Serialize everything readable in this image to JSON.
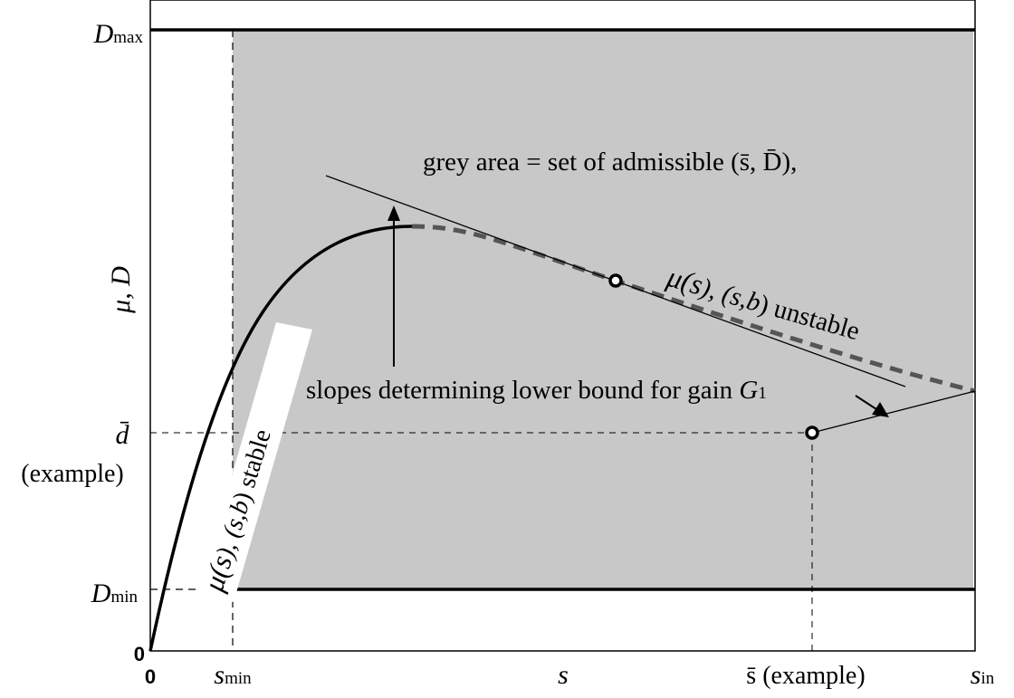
{
  "axes": {
    "y_label": "μ, D",
    "x_label": "s",
    "origin_x": "0",
    "origin_y": "0"
  },
  "y_ticks": {
    "d_max_base": "D",
    "d_max_sub": "max",
    "d_min_base": "D",
    "d_min_sub": "min",
    "d_bar": "d̄",
    "d_bar_note": "(example)"
  },
  "x_ticks": {
    "s_min_base": "s",
    "s_min_sub": "min",
    "s_bar": "s̄ (example)",
    "s_in_base": "s",
    "s_in_sub": "in"
  },
  "annotations": {
    "grey_area": "grey area = set of admissible (s̄, D̄),",
    "slopes": "slopes determining lower bound for gain ",
    "gain_base": "G",
    "gain_sub": "1",
    "stable_mu": "μ(s",
    "stable_mid": "), (s",
    "stable_b": ",b",
    "stable_end": ") stable",
    "unstable_mu": "μ(s",
    "unstable_mid": "), (s",
    "unstable_b": ",b",
    "unstable_end": ") unstable"
  },
  "colors": {
    "admissible_fill": "#c8c8c8",
    "curve_unstable": "#555555",
    "line": "#000000"
  }
}
